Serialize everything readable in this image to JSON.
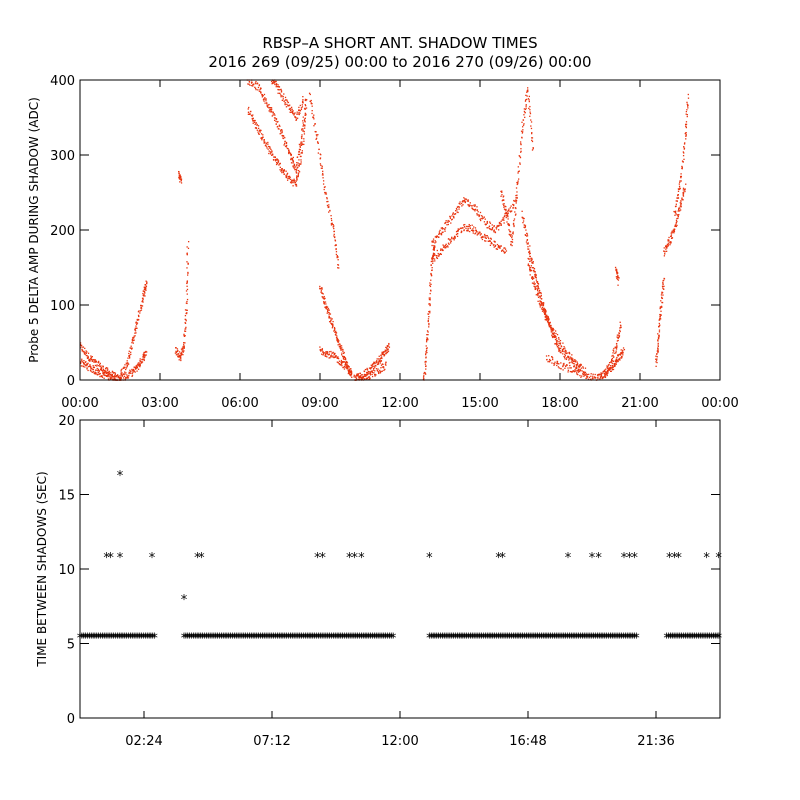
{
  "title_line1": "RBSP–A SHORT ANT. SHADOW TIMES",
  "title_line2": "2016 269 (09/25) 00:00 to 2016 270 (09/26) 00:00",
  "colors": {
    "top_series": "#e8340f",
    "bottom_series": "#000000",
    "axes": "#000000"
  },
  "chart_data": [
    {
      "type": "scatter",
      "ylabel": "Probe 5 DELTA AMP DURING SHADOW (ADC)",
      "xlabel": "",
      "x_unit": "hours since 2016-09-25 00:00 (display)",
      "xlim": [
        0,
        24
      ],
      "ylim": [
        0,
        400
      ],
      "xticks": [
        0,
        3,
        6,
        9,
        12,
        15,
        18,
        21,
        24
      ],
      "xtick_labels": [
        "00:00",
        "03:00",
        "06:00",
        "09:00",
        "12:00",
        "15:00",
        "18:00",
        "21:00",
        "00:00"
      ],
      "yticks": [
        0,
        100,
        200,
        300,
        400
      ],
      "ytick_labels": [
        "0",
        "100",
        "200",
        "300",
        "400"
      ],
      "marker": "dot",
      "segments": [
        {
          "x": [
            0.0,
            0.3,
            0.6,
            0.9,
            1.2,
            1.5
          ],
          "y": [
            45,
            32,
            22,
            14,
            7,
            0
          ]
        },
        {
          "x": [
            0.0,
            0.3,
            0.6,
            0.9,
            1.2,
            1.5
          ],
          "y": [
            25,
            18,
            12,
            7,
            3,
            0
          ]
        },
        {
          "x": [
            1.5,
            1.8,
            2.1,
            2.3,
            2.5
          ],
          "y": [
            2,
            6,
            15,
            26,
            38
          ]
        },
        {
          "x": [
            1.5,
            1.8,
            2.0,
            2.2,
            2.4,
            2.5
          ],
          "y": [
            4,
            25,
            55,
            85,
            115,
            130
          ]
        },
        {
          "x": [
            3.7,
            3.8
          ],
          "y": [
            275,
            265
          ]
        },
        {
          "x": [
            3.6,
            3.75,
            3.9,
            4.0,
            4.05
          ],
          "y": [
            40,
            30,
            45,
            100,
            185
          ]
        },
        {
          "x": [
            6.3,
            6.7,
            7.0,
            7.3,
            7.6,
            7.9,
            8.1,
            8.3,
            8.5
          ],
          "y": [
            400,
            390,
            370,
            350,
            325,
            300,
            280,
            320,
            380
          ]
        },
        {
          "x": [
            6.3,
            6.6,
            6.9,
            7.2,
            7.5,
            7.8,
            8.1,
            8.3,
            8.5
          ],
          "y": [
            360,
            340,
            320,
            300,
            285,
            270,
            260,
            300,
            360
          ]
        },
        {
          "x": [
            7.2,
            7.5,
            7.8,
            8.1,
            8.4
          ],
          "y": [
            400,
            385,
            365,
            350,
            375
          ]
        },
        {
          "x": [
            8.6,
            8.9,
            9.2,
            9.5,
            9.7
          ],
          "y": [
            380,
            320,
            250,
            200,
            150
          ]
        },
        {
          "x": [
            9.0,
            9.2,
            9.4,
            9.6,
            9.8,
            10.0,
            10.2
          ],
          "y": [
            125,
            100,
            80,
            60,
            40,
            20,
            5
          ]
        },
        {
          "x": [
            9.0,
            9.3,
            9.6,
            9.9,
            10.2
          ],
          "y": [
            40,
            35,
            30,
            20,
            8
          ]
        },
        {
          "x": [
            10.3,
            10.6,
            10.9,
            11.2,
            11.4,
            11.6
          ],
          "y": [
            2,
            6,
            14,
            25,
            35,
            45
          ]
        },
        {
          "x": [
            10.3,
            10.7,
            11.1,
            11.5
          ],
          "y": [
            0,
            4,
            10,
            20
          ]
        },
        {
          "x": [
            12.9,
            13.0,
            13.1,
            13.2,
            13.3
          ],
          "y": [
            0,
            40,
            100,
            160,
            180
          ]
        },
        {
          "x": [
            13.2,
            13.6,
            14.0,
            14.4,
            14.8,
            15.2,
            15.6,
            16.0,
            16.4
          ],
          "y": [
            180,
            200,
            220,
            240,
            230,
            210,
            200,
            220,
            240
          ]
        },
        {
          "x": [
            13.2,
            13.6,
            14.0,
            14.4,
            14.8,
            15.2,
            15.6,
            16.0
          ],
          "y": [
            160,
            175,
            190,
            205,
            200,
            190,
            180,
            170
          ]
        },
        {
          "x": [
            15.8,
            16.0,
            16.2,
            16.4,
            16.6,
            16.8,
            17.0
          ],
          "y": [
            250,
            220,
            180,
            260,
            340,
            390,
            300
          ]
        },
        {
          "x": [
            16.6,
            16.8,
            17.0,
            17.2,
            17.4,
            17.6,
            17.8,
            18.0,
            18.4,
            18.8
          ],
          "y": [
            220,
            180,
            150,
            120,
            95,
            75,
            55,
            40,
            25,
            15
          ]
        },
        {
          "x": [
            16.8,
            17.0,
            17.3,
            17.6,
            18.0,
            18.5,
            19.0
          ],
          "y": [
            160,
            130,
            100,
            75,
            50,
            25,
            10
          ]
        },
        {
          "x": [
            17.5,
            18.0,
            18.5,
            19.0,
            19.4
          ],
          "y": [
            30,
            20,
            12,
            6,
            2
          ]
        },
        {
          "x": [
            19.4,
            19.7,
            20.0,
            20.2,
            20.4
          ],
          "y": [
            2,
            8,
            18,
            30,
            40
          ]
        },
        {
          "x": [
            19.6,
            19.9,
            20.1,
            20.3
          ],
          "y": [
            5,
            20,
            45,
            75
          ]
        },
        {
          "x": [
            20.1,
            20.2
          ],
          "y": [
            150,
            130
          ]
        },
        {
          "x": [
            21.6,
            21.7,
            21.8,
            21.9
          ],
          "y": [
            20,
            60,
            100,
            140
          ]
        },
        {
          "x": [
            21.9,
            22.1,
            22.3,
            22.5,
            22.7
          ],
          "y": [
            170,
            185,
            200,
            230,
            260
          ]
        },
        {
          "x": [
            22.3,
            22.5,
            22.7,
            22.8
          ],
          "y": [
            220,
            260,
            320,
            380
          ]
        }
      ]
    },
    {
      "type": "scatter",
      "ylabel": "TIME BETWEEN SHADOWS (SEC)",
      "xlabel": "",
      "x_unit": "hours since 2016-09-25 00:00 (display)",
      "xlim": [
        0,
        24
      ],
      "ylim": [
        0,
        20
      ],
      "xticks": [
        2.4,
        7.2,
        12.0,
        16.8,
        21.6
      ],
      "xtick_labels": [
        "02:24",
        "07:12",
        "12:00",
        "16:48",
        "21:36"
      ],
      "yticks": [
        0,
        5,
        10,
        15,
        20
      ],
      "ytick_labels": [
        "0",
        "5",
        "10",
        "15",
        "20"
      ],
      "marker": "*",
      "bands": [
        {
          "y": 5.4,
          "x_ranges": [
            [
              0.0,
              2.8
            ],
            [
              3.9,
              11.8
            ],
            [
              13.1,
              20.9
            ],
            [
              22.0,
              24.0
            ]
          ]
        }
      ],
      "points": [
        {
          "x": [
            1.0,
            1.15,
            1.5,
            2.7,
            4.4,
            4.55,
            8.9,
            9.1,
            10.1,
            10.3,
            10.55,
            13.1,
            15.7,
            15.85,
            18.3,
            19.2,
            19.45,
            20.4,
            20.6,
            20.8,
            22.1,
            22.3,
            22.45,
            23.5,
            23.95
          ],
          "y": [
            10.8,
            10.8,
            10.8,
            10.8,
            10.8,
            10.8,
            10.8,
            10.8,
            10.8,
            10.8,
            10.8,
            10.8,
            10.8,
            10.8,
            10.8,
            10.8,
            10.8,
            10.8,
            10.8,
            10.8,
            10.8,
            10.8,
            10.8,
            10.8,
            10.8
          ]
        },
        {
          "x": [
            1.5
          ],
          "y": [
            16.3
          ]
        },
        {
          "x": [
            3.9
          ],
          "y": [
            8.0
          ]
        }
      ]
    }
  ]
}
